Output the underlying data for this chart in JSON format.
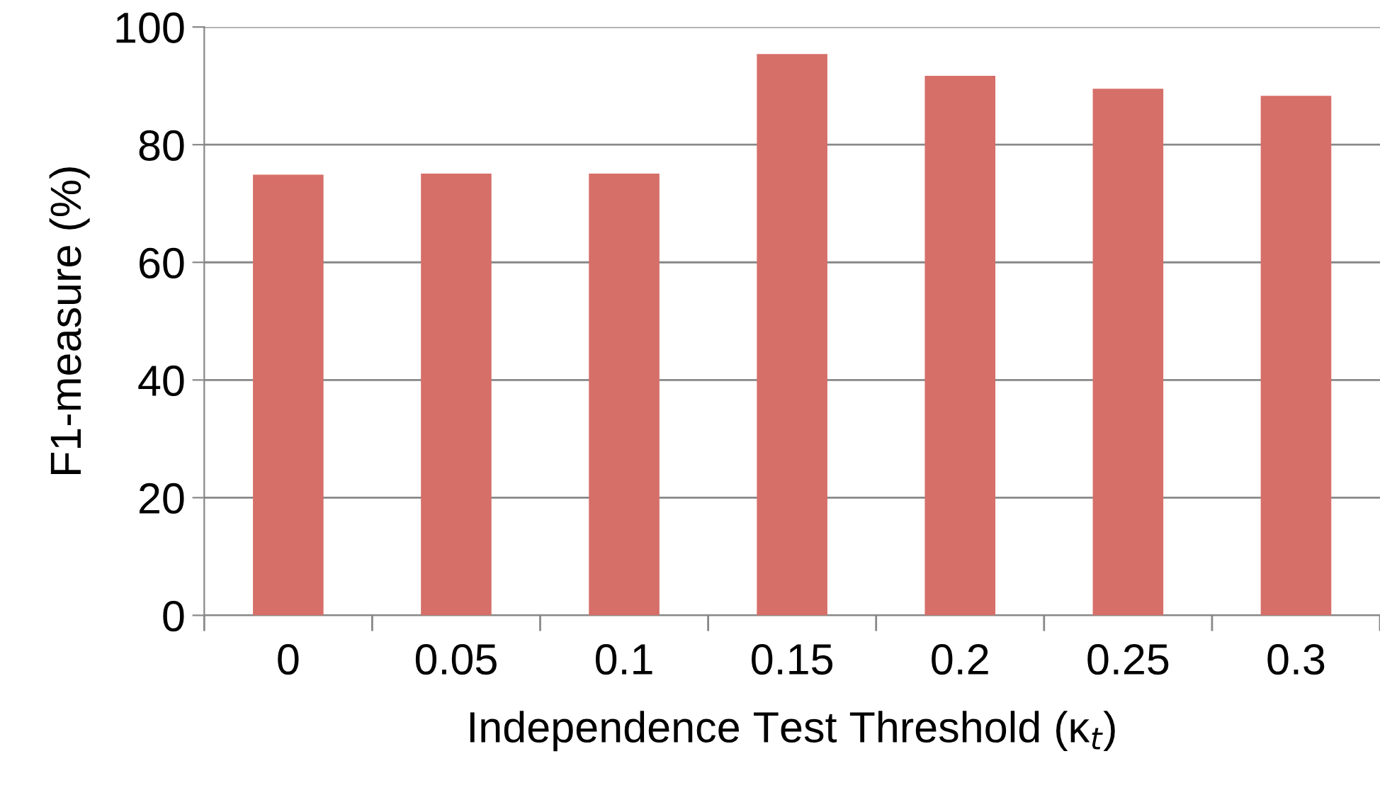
{
  "chart_data": {
    "type": "bar",
    "xlabel": "Independence Test Threshold (κ$_{t}$)",
    "ylabel": "F1-measure (%)",
    "categories": [
      "0",
      "0.05",
      "0.1",
      "0.15",
      "0.2",
      "0.25",
      "0.3"
    ],
    "values": [
      74.9,
      75.1,
      75.1,
      95.4,
      91.7,
      89.5,
      88.3
    ],
    "color": "#d66f68",
    "ylim": [
      0,
      100
    ],
    "yticks": [
      0,
      20,
      40,
      60,
      80,
      100
    ],
    "grid": "y",
    "legend": false
  }
}
